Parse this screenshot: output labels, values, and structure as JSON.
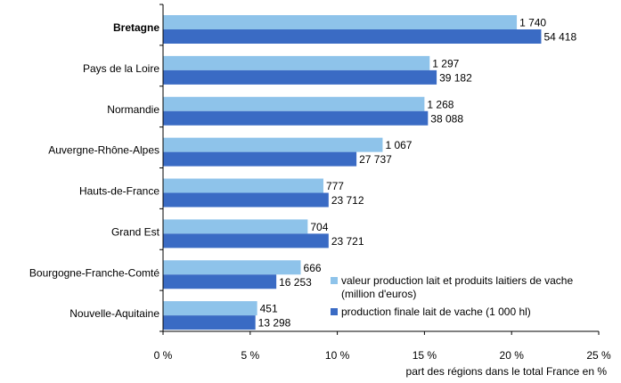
{
  "chart_data": {
    "type": "bar",
    "orientation": "horizontal",
    "categories": [
      "Bretagne",
      "Pays de la Loire",
      "Normandie",
      "Auvergne-Rhône-Alpes",
      "Hauts-de-France",
      "Grand Est",
      "Bourgogne-Franche-Comté",
      "Nouvelle-Aquitaine"
    ],
    "bold_categories": [
      "Bretagne"
    ],
    "series": [
      {
        "name": "valeur production lait et produits laitiers de vache (million d'euros)",
        "legend_lines": [
          "valeur production lait et produits laitiers de vache",
          "(million d'euros)"
        ],
        "color": "#8EC3EA",
        "values": [
          20.3,
          15.3,
          15.0,
          12.6,
          9.2,
          8.3,
          7.9,
          5.4
        ],
        "labels": [
          "1 740",
          "1 297",
          "1 268",
          "1 067",
          "777",
          "704",
          "666",
          "451"
        ]
      },
      {
        "name": "production finale lait de vache (1 000 hl)",
        "legend_lines": [
          "production finale lait de vache (1 000 hl)"
        ],
        "color": "#3A6BC4",
        "values": [
          21.7,
          15.7,
          15.2,
          11.1,
          9.5,
          9.5,
          6.5,
          5.3
        ],
        "labels": [
          "54 418",
          "39 182",
          "38 088",
          "27 737",
          "23 712",
          "23 721",
          "16 253",
          "13 298"
        ]
      }
    ],
    "x_ticks": [
      0,
      5,
      10,
      15,
      20,
      25
    ],
    "x_tick_labels": [
      "0 %",
      "5 %",
      "10 %",
      "15 %",
      "20 %",
      "25 %"
    ],
    "xlim": [
      0,
      25
    ],
    "xlabel": "part des régions dans le total France en %",
    "grid": false,
    "legend_position": "bottom-right"
  }
}
